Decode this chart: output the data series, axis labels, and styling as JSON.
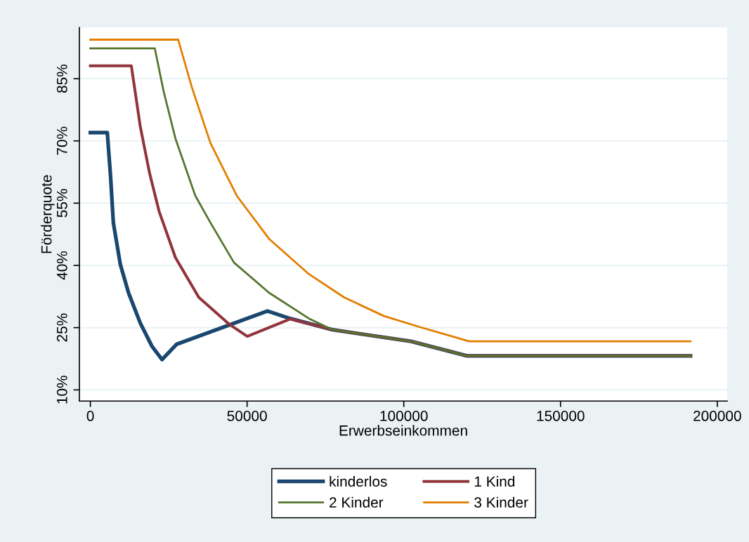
{
  "chart_data": {
    "type": "line",
    "xlabel": "Erwerbseinkommen",
    "ylabel": "Förderquote",
    "xlim": [
      -3500,
      203200
    ],
    "xticks": [
      0,
      50000,
      100000,
      150000,
      200000
    ],
    "ylim": [
      7.3,
      97.3
    ],
    "yticks": [
      {
        "value": 10,
        "label": "10%"
      },
      {
        "value": 25,
        "label": "25%"
      },
      {
        "value": 40,
        "label": "40%"
      },
      {
        "value": 55,
        "label": "55%"
      },
      {
        "value": 70,
        "label": "70%"
      },
      {
        "value": 85,
        "label": "85%"
      }
    ],
    "grid": "y",
    "legend": "bottom",
    "marker": "none",
    "line_style": "solid",
    "series": [
      {
        "name": "kinderlos",
        "color": "#1a476f",
        "x": [
          0,
          5400,
          6430,
          7330,
          9570,
          12170,
          15920,
          19660,
          22870,
          27510,
          56500,
          63740,
          77200,
          102240,
          120170,
          191470
        ],
        "values": [
          72.0,
          72.0,
          61.6,
          50.3,
          40.2,
          33.4,
          26.1,
          20.5,
          17.3,
          21.0,
          29.0,
          27.2,
          24.5,
          21.7,
          18.2,
          18.2
        ]
      },
      {
        "name": "1 Kind",
        "color": "#90353b",
        "x": [
          0,
          13070,
          15920,
          18900,
          21900,
          27130,
          34590,
          44330,
          50060,
          63740,
          77200,
          102240,
          120170,
          191470
        ],
        "values": [
          88.1,
          88.1,
          73.5,
          62.2,
          53.1,
          41.9,
          32.3,
          25.8,
          22.9,
          27.1,
          24.5,
          21.7,
          18.2,
          18.2
        ]
      },
      {
        "name": "2 Kinder",
        "color": "#55752f",
        "x": [
          0,
          20560,
          23390,
          27130,
          33470,
          38300,
          45800,
          57010,
          69730,
          77200,
          102240,
          120170,
          191470
        ],
        "values": [
          92.3,
          92.3,
          81.9,
          70.6,
          56.8,
          50.3,
          40.7,
          33.4,
          27.2,
          24.5,
          21.7,
          18.2,
          18.2
        ]
      },
      {
        "name": "3 Kinder",
        "color": "#e37e00",
        "x": [
          0,
          28020,
          32350,
          38300,
          46700,
          57010,
          69730,
          80940,
          93650,
          104860,
          120840,
          191470
        ],
        "values": [
          94.4,
          94.4,
          83.0,
          69.5,
          56.8,
          46.4,
          37.9,
          32.3,
          27.8,
          25.2,
          21.7,
          21.7
        ]
      }
    ]
  }
}
